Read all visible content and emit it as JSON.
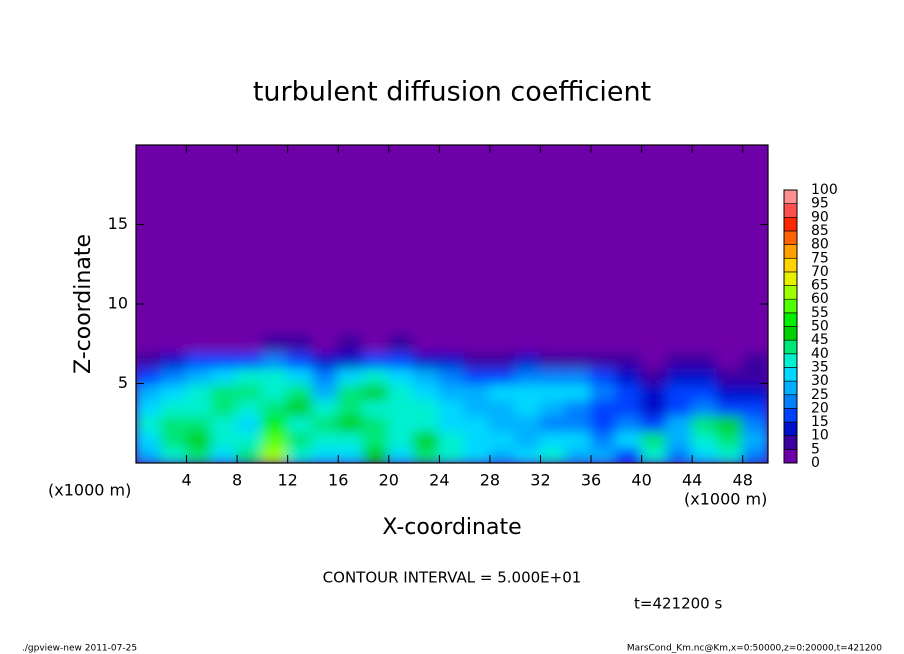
{
  "chart_data": {
    "type": "contour",
    "title": "turbulent diffusion coefficient",
    "x_label": "X-coordinate",
    "y_label": "Z-coordinate",
    "x_unit": "(x1000 m)",
    "y_unit": "(x1000 m)",
    "annotation": "CONTOUR INTERVAL = 5.000E+01",
    "time_label": "t=421200 s",
    "footer_left": "./gpview-new  2011-07-25",
    "footer_right": "MarsCond_Km.nc@Km,x=0:50000,z=0:20000,t=421200",
    "xlim": [
      0,
      50
    ],
    "ylim": [
      0,
      20
    ],
    "xticks": [
      4,
      8,
      12,
      16,
      20,
      24,
      28,
      32,
      36,
      40,
      44,
      48
    ],
    "yticks": [
      5,
      10,
      15
    ],
    "x": [
      1,
      3,
      5,
      7,
      9,
      11,
      13,
      15,
      17,
      19,
      21,
      23,
      25,
      27,
      29,
      31,
      33,
      35,
      37,
      39,
      41,
      43,
      45,
      47,
      49
    ],
    "y": [
      0.5,
      1.5,
      2.5,
      3.5,
      4.5,
      5.5,
      6.5,
      7.5
    ],
    "z": [
      [
        25,
        35,
        40,
        30,
        40,
        60,
        35,
        30,
        30,
        45,
        30,
        40,
        35,
        30,
        25,
        30,
        35,
        25,
        25,
        15,
        35,
        20,
        30,
        35,
        20
      ],
      [
        30,
        40,
        45,
        35,
        35,
        55,
        40,
        35,
        35,
        40,
        35,
        45,
        35,
        30,
        30,
        25,
        30,
        30,
        20,
        30,
        40,
        25,
        35,
        40,
        25
      ],
      [
        35,
        40,
        40,
        35,
        30,
        50,
        35,
        40,
        45,
        40,
        35,
        35,
        30,
        30,
        25,
        25,
        20,
        20,
        15,
        20,
        15,
        25,
        40,
        45,
        20
      ],
      [
        30,
        35,
        35,
        40,
        35,
        40,
        45,
        35,
        40,
        35,
        35,
        35,
        30,
        25,
        25,
        30,
        25,
        20,
        15,
        15,
        10,
        15,
        20,
        15,
        15
      ],
      [
        25,
        30,
        35,
        40,
        40,
        35,
        40,
        25,
        40,
        45,
        35,
        30,
        25,
        25,
        30,
        30,
        30,
        30,
        20,
        15,
        10,
        15,
        15,
        10,
        10
      ],
      [
        15,
        20,
        25,
        30,
        35,
        35,
        30,
        20,
        30,
        35,
        30,
        25,
        20,
        15,
        15,
        20,
        20,
        20,
        15,
        10,
        5,
        10,
        10,
        5,
        5
      ],
      [
        5,
        10,
        15,
        15,
        15,
        20,
        15,
        10,
        10,
        15,
        15,
        10,
        10,
        5,
        5,
        10,
        5,
        5,
        5,
        5,
        0,
        5,
        5,
        0,
        5
      ],
      [
        0,
        0,
        0,
        0,
        0,
        5,
        5,
        0,
        5,
        0,
        5,
        0,
        0,
        0,
        0,
        0,
        0,
        0,
        0,
        0,
        0,
        0,
        0,
        0,
        0
      ]
    ],
    "levels": [
      0,
      5,
      10,
      15,
      20,
      25,
      30,
      35,
      40,
      45,
      50,
      55,
      60,
      65,
      70,
      75,
      80,
      85,
      90,
      95,
      100
    ],
    "colors": [
      "#6e00a8",
      "#3a00a0",
      "#0010c8",
      "#0040ff",
      "#0080ff",
      "#00b0ff",
      "#00d8ff",
      "#00f0d0",
      "#00e678",
      "#00d200",
      "#00f000",
      "#50ff00",
      "#a0ff00",
      "#e6f000",
      "#ffd200",
      "#ffa000",
      "#ff6400",
      "#ff2800",
      "#ff5050",
      "#ff9090"
    ]
  }
}
